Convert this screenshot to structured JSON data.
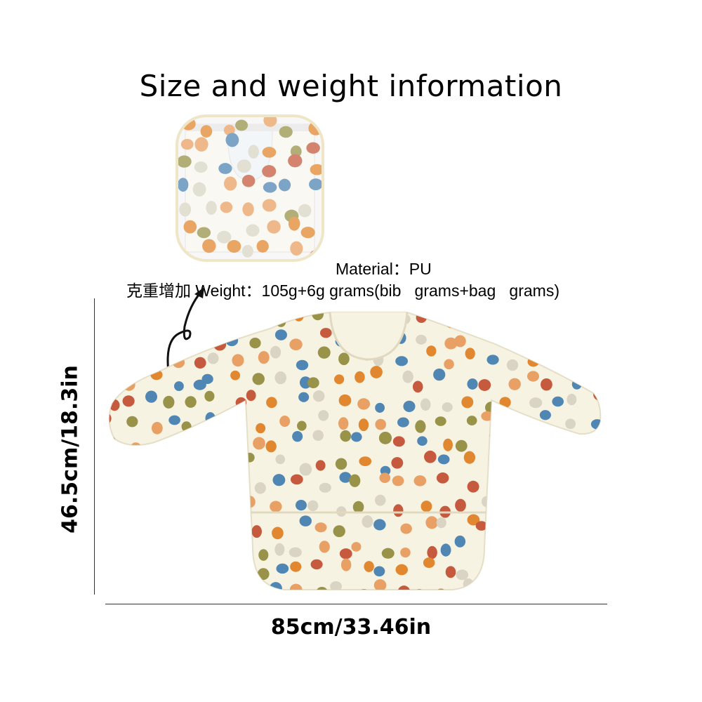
{
  "title": "Size and weight information",
  "material_text": "Material：PU",
  "weight_text": "克重增加 Weight：105g+6g grams(bib   grams+bag   grams)",
  "width_label": "85cm/33.46in",
  "height_label": "46.5cm/18.3in",
  "colors": {
    "bib_fabric": "#f7f3e3",
    "pack_border": "#efe6c8",
    "dot_colors": [
      "#e0872f",
      "#4f86b4",
      "#c55a3e",
      "#99934a",
      "#d9d4c4",
      "#e8a064"
    ]
  }
}
